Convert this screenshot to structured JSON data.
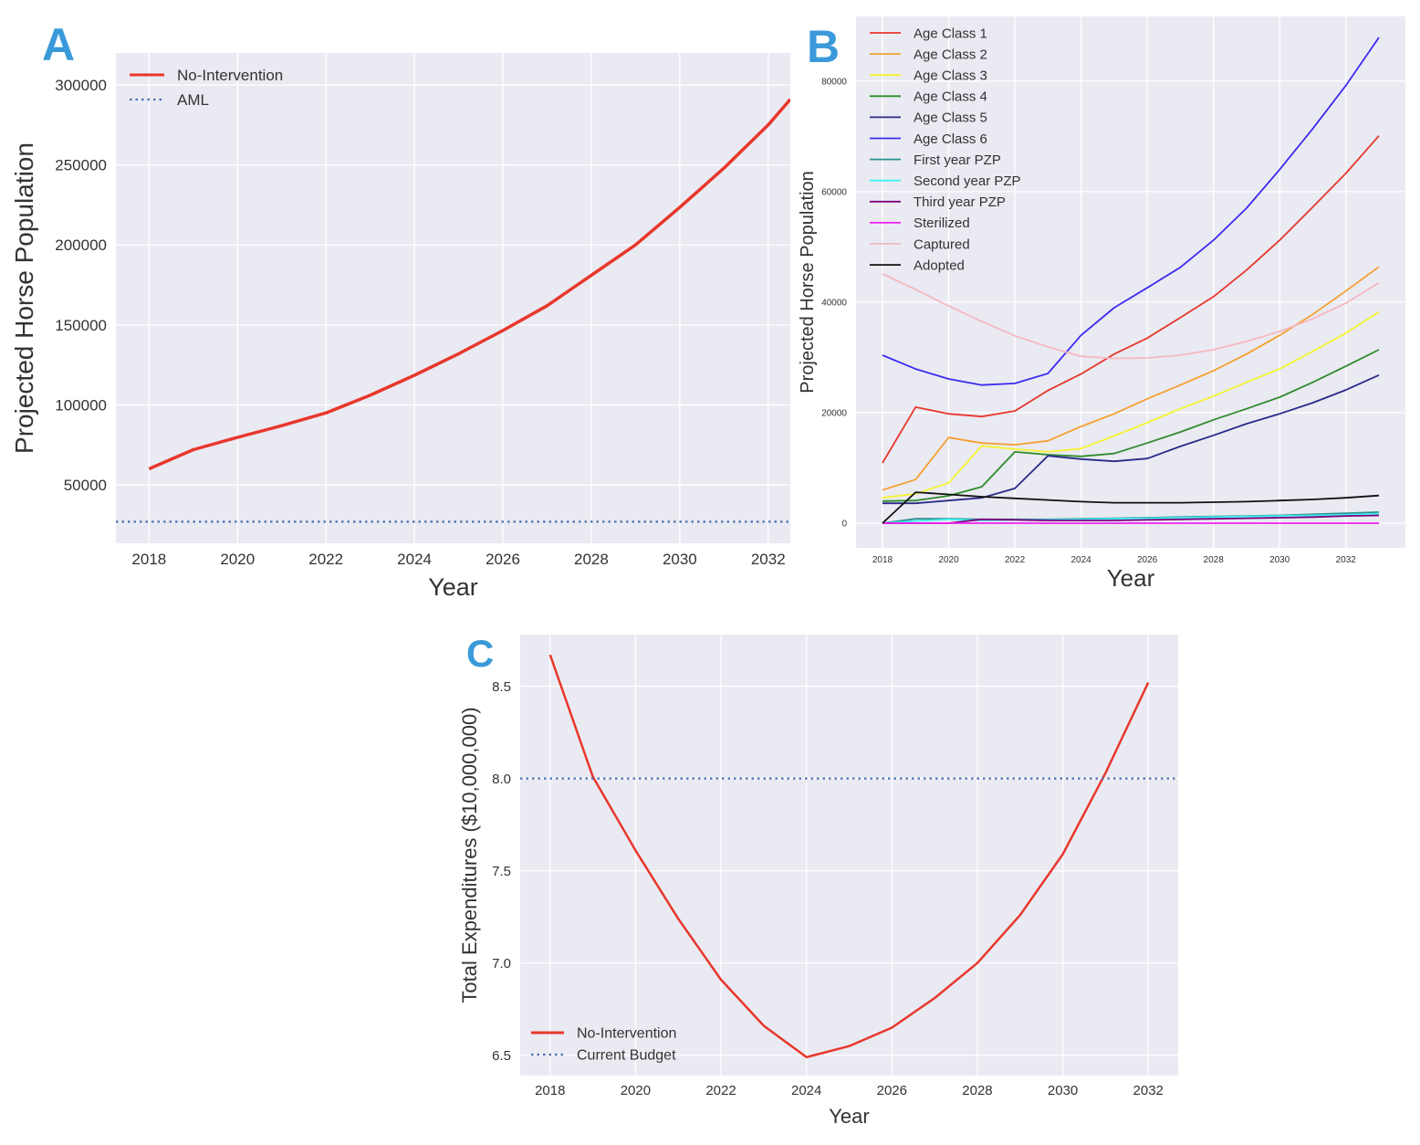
{
  "colors": {
    "background": "#eaeaf2",
    "grid": "#ffffff",
    "panel_label": "#3a9ad9",
    "reference_line": "#4c72b0"
  },
  "chart_data": [
    {
      "panel_label": "A",
      "type": "line",
      "title": "",
      "xlabel": "Year",
      "ylabel": "Projected Horse Population",
      "xlim": [
        2017.25,
        2032.5
      ],
      "ylim": [
        13500,
        320000
      ],
      "xticks": [
        2018,
        2020,
        2022,
        2024,
        2026,
        2028,
        2030,
        2032
      ],
      "yticks": [
        50000,
        100000,
        150000,
        200000,
        250000,
        300000
      ],
      "grid": true,
      "legend_position": "top-left",
      "series": [
        {
          "name": "No-Intervention",
          "color": "#e8372c",
          "style": "solid",
          "x": [
            2018,
            2019,
            2020,
            2021,
            2022,
            2023,
            2024,
            2025,
            2026,
            2027,
            2028,
            2029,
            2030,
            2031,
            2032,
            2032.5
          ],
          "y": [
            60000,
            72000,
            79700,
            87000,
            95000,
            106000,
            118500,
            132000,
            146500,
            162000,
            181000,
            200000,
            223500,
            248000,
            275000,
            291000
          ]
        },
        {
          "name": "AML",
          "color": "#4c72b0",
          "style": "dotted",
          "hline": 27000
        }
      ]
    },
    {
      "panel_label": "B",
      "type": "line",
      "title": "",
      "xlabel": "Year",
      "ylabel": "Projected Horse Population",
      "xlim": [
        2017.2,
        2033.8
      ],
      "ylim": [
        -4460,
        91700
      ],
      "xticks": [
        2018,
        2020,
        2022,
        2024,
        2026,
        2028,
        2030,
        2032
      ],
      "yticks": [
        0,
        20000,
        40000,
        60000,
        80000
      ],
      "grid": true,
      "legend_position": "top-left",
      "x": [
        2018,
        2019,
        2020,
        2021,
        2022,
        2023,
        2024,
        2025,
        2026,
        2027,
        2028,
        2029,
        2030,
        2031,
        2032,
        2033
      ],
      "series": [
        {
          "name": "Age Class 1",
          "color": "#e8372c",
          "y": [
            10900,
            21000,
            19800,
            19300,
            20300,
            24000,
            27000,
            30600,
            33500,
            37200,
            41000,
            45800,
            51200,
            57200,
            63300,
            70100
          ]
        },
        {
          "name": "Age Class 2",
          "color": "#f5a030",
          "y": [
            6000,
            7900,
            15500,
            14500,
            14200,
            14900,
            17500,
            19800,
            22500,
            25000,
            27600,
            30600,
            34000,
            37800,
            42000,
            46400
          ]
        },
        {
          "name": "Age Class 3",
          "color": "#f4f430",
          "y": [
            4600,
            5300,
            7300,
            14000,
            13400,
            12900,
            13500,
            15800,
            18200,
            20700,
            23000,
            25500,
            27900,
            31100,
            34400,
            38200
          ]
        },
        {
          "name": "Age Class 4",
          "color": "#2e8b2e",
          "y": [
            4000,
            4100,
            4950,
            6600,
            12900,
            12400,
            12100,
            12600,
            14500,
            16500,
            18700,
            20700,
            22800,
            25500,
            28400,
            31400
          ]
        },
        {
          "name": "Age Class 5",
          "color": "#2a2a8a",
          "y": [
            3600,
            3600,
            4100,
            4600,
            6300,
            12200,
            11600,
            11200,
            11700,
            13900,
            15900,
            18000,
            19800,
            21800,
            24100,
            26800
          ]
        },
        {
          "name": "Age Class 6",
          "color": "#3a2cf0",
          "y": [
            30400,
            27900,
            26100,
            25000,
            25300,
            27100,
            34000,
            39000,
            42600,
            46300,
            51200,
            57000,
            64000,
            71400,
            79200,
            87900
          ]
        },
        {
          "name": "First year PZP",
          "color": "#2a9090",
          "y": [
            0,
            800,
            800,
            700,
            700,
            700,
            800,
            900,
            1000,
            1100,
            1200,
            1300,
            1400,
            1600,
            1800,
            2000
          ]
        },
        {
          "name": "Second year PZP",
          "color": "#40f0f0",
          "y": [
            0,
            400,
            700,
            500,
            600,
            600,
            700,
            800,
            900,
            1000,
            1100,
            1200,
            1300,
            1400,
            1500,
            1700
          ]
        },
        {
          "name": "Third year PZP",
          "color": "#800080",
          "y": [
            0,
            0,
            0,
            700,
            600,
            500,
            500,
            500,
            600,
            700,
            800,
            900,
            1000,
            1100,
            1300,
            1400
          ]
        },
        {
          "name": "Sterilized",
          "color": "#f020f0",
          "y": [
            0,
            0,
            0,
            0,
            0,
            0,
            0,
            0,
            0,
            0,
            0,
            0,
            0,
            0,
            0,
            0
          ]
        },
        {
          "name": "Captured",
          "color": "#f5b8c0",
          "y": [
            45100,
            42300,
            39300,
            36500,
            33900,
            31900,
            30200,
            29800,
            29900,
            30400,
            31400,
            32900,
            34700,
            37000,
            39800,
            43500
          ]
        },
        {
          "name": "Adopted",
          "color": "#111111",
          "y": [
            0,
            5600,
            5200,
            4800,
            4500,
            4200,
            3900,
            3700,
            3700,
            3700,
            3800,
            3900,
            4100,
            4300,
            4600,
            5000
          ]
        }
      ]
    },
    {
      "panel_label": "C",
      "type": "line",
      "title": "",
      "xlabel": "Year",
      "ylabel": "Total Expenditures ($10,000,000)",
      "xlim": [
        2017.3,
        2032.7
      ],
      "ylim": [
        6.39,
        8.78
      ],
      "xticks": [
        2018,
        2020,
        2022,
        2024,
        2026,
        2028,
        2030,
        2032
      ],
      "yticks": [
        6.5,
        7.0,
        7.5,
        8.0,
        8.5
      ],
      "ytick_labels": [
        "6.5",
        "7.0",
        "7.5",
        "8.0",
        "8.5"
      ],
      "grid": true,
      "legend_position": "bottom-left",
      "series": [
        {
          "name": "No-Intervention",
          "color": "#e8372c",
          "style": "solid",
          "x": [
            2018,
            2019,
            2020,
            2021,
            2022,
            2023,
            2024,
            2025,
            2026,
            2027,
            2028,
            2029,
            2030,
            2031,
            2032
          ],
          "y": [
            8.67,
            8.01,
            7.61,
            7.24,
            6.91,
            6.66,
            6.49,
            6.55,
            6.65,
            6.81,
            7.0,
            7.26,
            7.59,
            8.03,
            8.52
          ]
        },
        {
          "name": "Current Budget",
          "color": "#4c72b0",
          "style": "dotted",
          "hline": 8.0
        }
      ]
    }
  ]
}
